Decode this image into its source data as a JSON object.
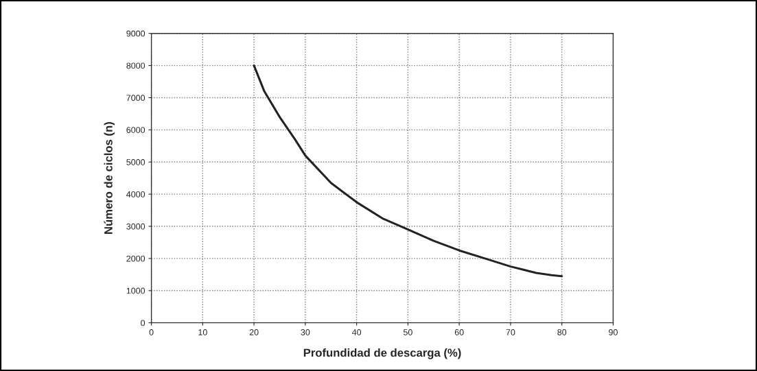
{
  "chart_data": {
    "type": "line",
    "xlabel": "Profundidad de descarga (%)",
    "ylabel": "Número de ciclos (n)",
    "x": [
      20,
      22,
      25,
      28,
      30,
      35,
      40,
      45,
      50,
      55,
      60,
      65,
      70,
      75,
      78,
      80
    ],
    "series": [
      {
        "color": "#222222",
        "values": [
          8000,
          7200,
          6400,
          5700,
          5200,
          4350,
          3750,
          3250,
          2900,
          2550,
          2250,
          2000,
          1750,
          1550,
          1480,
          1450
        ]
      }
    ],
    "xlim": [
      0,
      90
    ],
    "xticks": [
      0,
      10,
      20,
      30,
      40,
      50,
      60,
      70,
      80,
      90
    ],
    "ylim": [
      0,
      9000
    ],
    "yticks": [
      0,
      1000,
      2000,
      3000,
      4000,
      5000,
      6000,
      7000,
      8000,
      9000
    ],
    "grid": true,
    "marker": "none",
    "line_style": "solid"
  }
}
